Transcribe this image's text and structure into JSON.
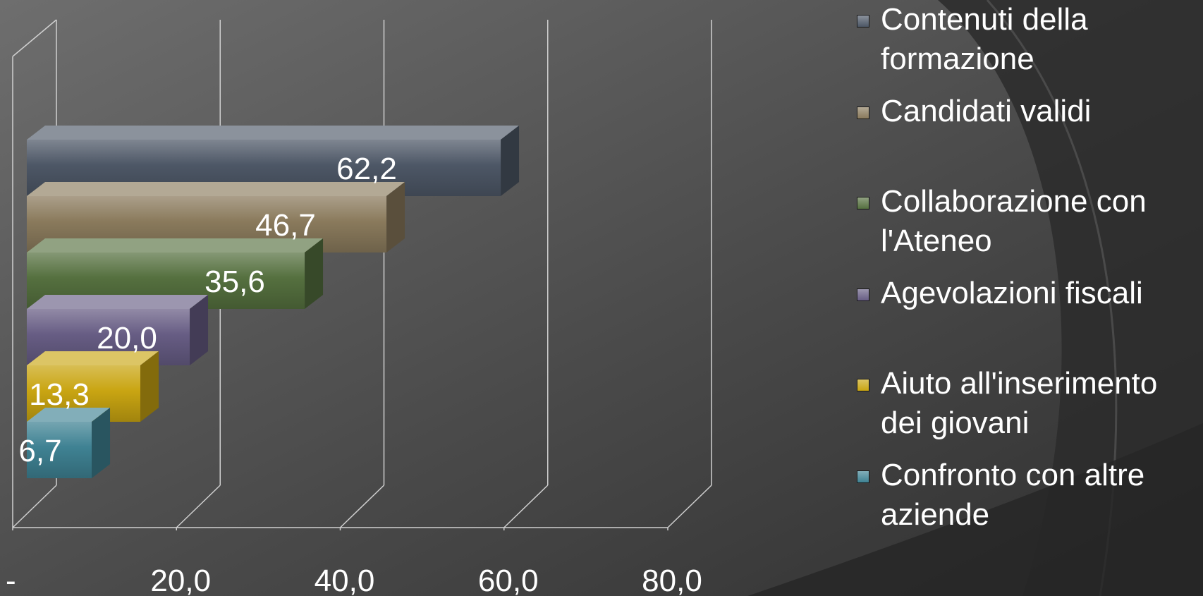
{
  "chart_data": {
    "type": "bar",
    "orientation": "horizontal",
    "style": "3d",
    "title": "",
    "xlabel": "",
    "ylabel": "",
    "xlim": [
      0,
      80
    ],
    "x_ticks": [
      "-",
      "20,0",
      "40,0",
      "60,0",
      "80,0"
    ],
    "x_tick_values": [
      0,
      20,
      40,
      60,
      80
    ],
    "grid": true,
    "legend_position": "right",
    "series": [
      {
        "name": "Contenuti della formazione",
        "value": 62.2,
        "label": "62,2",
        "color": "#4d5766"
      },
      {
        "name": "Candidati validi",
        "value": 46.7,
        "label": "46,7",
        "color": "#8a7a5c"
      },
      {
        "name": "Collaborazione con l'Ateneo",
        "value": 35.6,
        "label": "35,6",
        "color": "#55703f"
      },
      {
        "name": "Agevolazioni fiscali",
        "value": 20.0,
        "label": "20,0",
        "color": "#675d84"
      },
      {
        "name": "Aiuto all'inserimento dei giovani",
        "value": 13.3,
        "label": "13,3",
        "color": "#c9a512"
      },
      {
        "name": "Confronto con altre aziende",
        "value": 6.7,
        "label": "6,7",
        "color": "#3f8293"
      }
    ]
  }
}
